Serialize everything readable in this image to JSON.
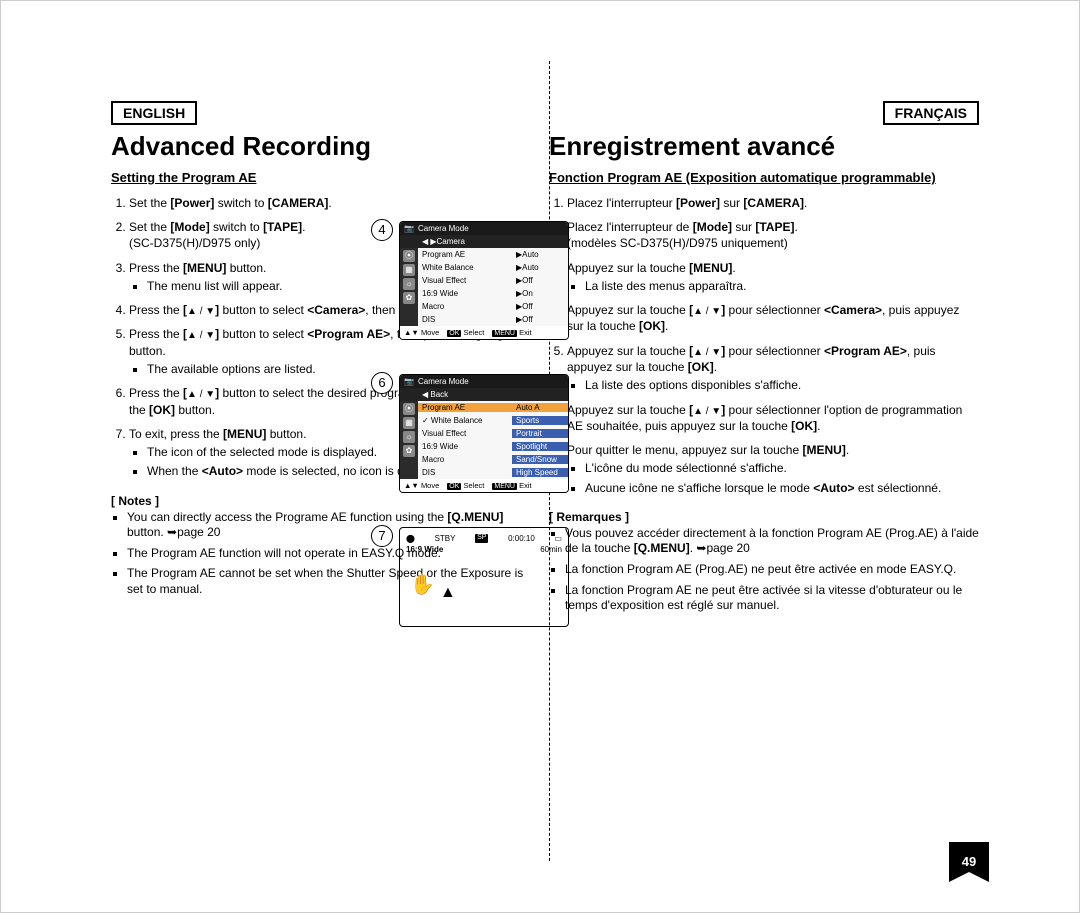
{
  "page_number": "49",
  "left": {
    "lang": "ENGLISH",
    "title": "Advanced Recording",
    "subtitle": "Setting the Program AE",
    "steps": [
      "Set the <b>[Power]</b> switch to <b>[CAMERA]</b>.",
      "Set the <b>[Mode]</b> switch to <b>[TAPE]</b>.<br>(SC-D375(H)/D975 only)",
      "Press the <b>[MENU]</b> button.",
      "Press the <b>[</b><span class='tri-updown'></span><b>]</b> button to select <b>&lt;Camera&gt;</b>, then press the <b>[OK]</b> button.",
      "Press the <b>[</b><span class='tri-updown'></span><b>]</b> button to select <b>&lt;Program AE&gt;</b>, then press the <b>[OK]</b> button.",
      "Press the <b>[</b><span class='tri-updown'></span><b>]</b> button to select the desired program AE option, then press the <b>[OK]</b> button.",
      "To exit, press the <b>[MENU]</b> button."
    ],
    "substeps": {
      "2": [
        "The menu list will appear."
      ],
      "4": [
        "The available options are listed."
      ],
      "6": [
        "The icon of the selected mode is displayed.",
        "When the <b>&lt;Auto&gt;</b> mode is selected, no icon is displayed."
      ]
    },
    "notes_head": "[ Notes ]",
    "notes": [
      "You can directly access the Programe AE function using the <b>[Q.MENU]</b> button. <span class='arrow-right'></span>page 20",
      "The Program AE function will not operate in EASY.Q mode.",
      "The Program AE cannot be set when the Shutter Speed or the Exposure is set to manual."
    ]
  },
  "right": {
    "lang": "FRANÇAIS",
    "title": "Enregistrement avancé",
    "subtitle": "Fonction Program AE (Exposition automatique programmable)",
    "steps": [
      "Placez l'interrupteur <b>[Power]</b> sur <b>[CAMERA]</b>.",
      "Placez l'interrupteur de <b>[Mode]</b> sur <b>[TAPE]</b>.<br>(modèles SC-D375(H)/D975 uniquement)",
      "Appuyez sur la touche <b>[MENU]</b>.",
      "Appuyez sur la touche <b>[</b><span class='tri-updown'></span><b>]</b> pour sélectionner <b>&lt;Camera&gt;</b>, puis appuyez sur la touche <b>[OK]</b>.",
      "Appuyez sur la touche <b>[</b><span class='tri-updown'></span><b>]</b> pour sélectionner <b>&lt;Program AE&gt;</b>, puis appuyez sur la touche <b>[OK]</b>.",
      "Appuyez sur la touche <b>[</b><span class='tri-updown'></span><b>]</b> pour sélectionner l'option de programmation AE souhaitée, puis appuyez sur la touche <b>[OK]</b>.",
      "Pour quitter le menu, appuyez sur la touche <b>[MENU]</b>."
    ],
    "substeps": {
      "2": [
        "La liste des menus apparaîtra."
      ],
      "4": [
        "La liste des options disponibles s'affiche."
      ],
      "6": [
        "L'icône du mode sélectionné s'affiche.",
        "Aucune icône ne s'affiche lorsque le mode <b>&lt;Auto&gt;</b> est sélectionné."
      ]
    },
    "notes_head": "[ Remarques ]",
    "notes": [
      "Vous pouvez accéder directement à la fonction Program AE (Prog.AE) à l'aide de la touche <b>[Q.MENU]</b>. <span class='arrow-right'></span>page 20",
      "La fonction Program AE (Prog.AE) ne peut être activée en mode EASY.Q.",
      "La fonction Program AE ne peut être activée si la vitesse d'obturateur ou le temps d'exposition est réglé sur manuel."
    ]
  },
  "figures": {
    "fig4": {
      "num": "4",
      "head": "Camera Mode",
      "head2": "▶Camera",
      "rows": [
        {
          "label": "Program AE",
          "val": "▶Auto"
        },
        {
          "label": "White Balance",
          "val": "▶Auto"
        },
        {
          "label": "Visual Effect",
          "val": "▶Off"
        },
        {
          "label": "16:9 Wide",
          "val": "▶On"
        },
        {
          "label": "Macro",
          "val": "▶Off"
        },
        {
          "label": "DIS",
          "val": "▶Off"
        }
      ],
      "foot_move": "Move",
      "foot_select": "Select",
      "foot_exit": "Exit"
    },
    "fig6": {
      "num": "6",
      "head": "Camera Mode",
      "back": "Back",
      "rows": [
        {
          "label": "Program AE",
          "val": "Auto",
          "hl": true,
          "sel": true,
          "sym": "A"
        },
        {
          "label": "White Balance",
          "val": "Sports",
          "sym": "✓"
        },
        {
          "label": "Visual Effect",
          "val": "Portrait",
          "sym": ""
        },
        {
          "label": "16:9 Wide",
          "val": "Spotlight",
          "sym": ""
        },
        {
          "label": "Macro",
          "val": "Sand/Snow",
          "sym": ""
        },
        {
          "label": "DIS",
          "val": "High Speed",
          "sym": ""
        }
      ],
      "foot_move": "Move",
      "foot_select": "Select",
      "foot_exit": "Exit"
    },
    "fig7": {
      "num": "7",
      "stby": "STBY",
      "sp": "SP",
      "time": "0:00:10",
      "remain": "60min",
      "mode": "16:9 Wide"
    }
  }
}
